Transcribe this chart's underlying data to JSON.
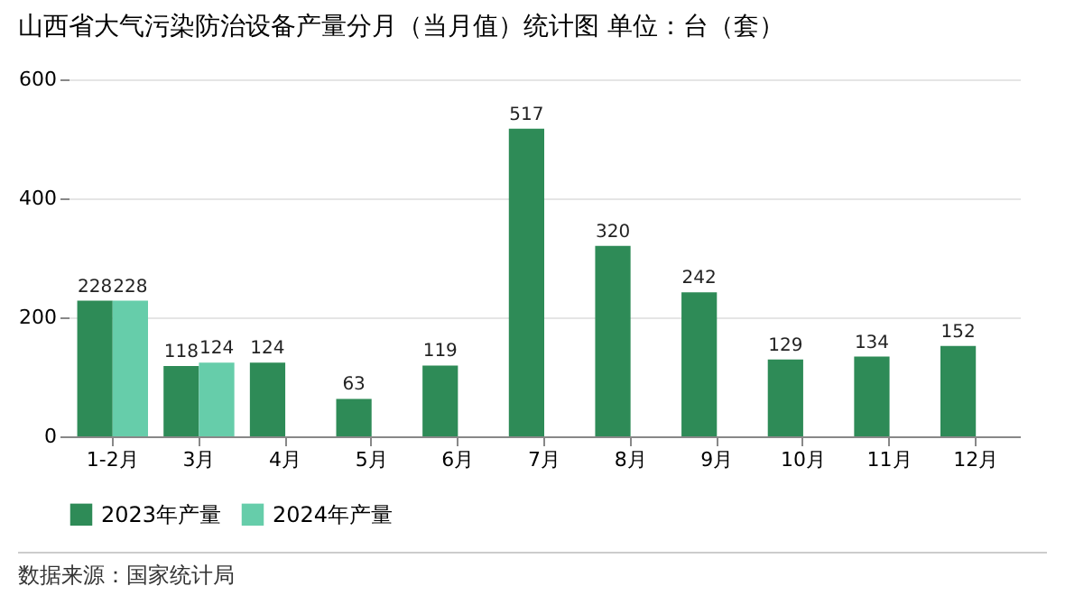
{
  "chart_data": {
    "type": "bar",
    "title": "山西省大气污染防治设备产量分月（当月值）统计图  单位：台（套）",
    "categories": [
      "1-2月",
      "3月",
      "4月",
      "5月",
      "6月",
      "7月",
      "8月",
      "9月",
      "10月",
      "11月",
      "12月"
    ],
    "series": [
      {
        "name": "2023年产量",
        "color": "#2e8b57",
        "values": [
          228,
          118,
          124,
          63,
          119,
          517,
          320,
          242,
          129,
          134,
          152
        ]
      },
      {
        "name": "2024年产量",
        "color": "#66cdaa",
        "values": [
          228,
          124,
          null,
          null,
          null,
          null,
          null,
          null,
          null,
          null,
          null
        ]
      }
    ],
    "ylim": [
      0,
      600
    ],
    "yticks": [
      0,
      200,
      400,
      600
    ],
    "grid": "y",
    "legend": "bottom",
    "data_labels": true,
    "annotations": [
      "数据来源：国家统计局"
    ]
  }
}
